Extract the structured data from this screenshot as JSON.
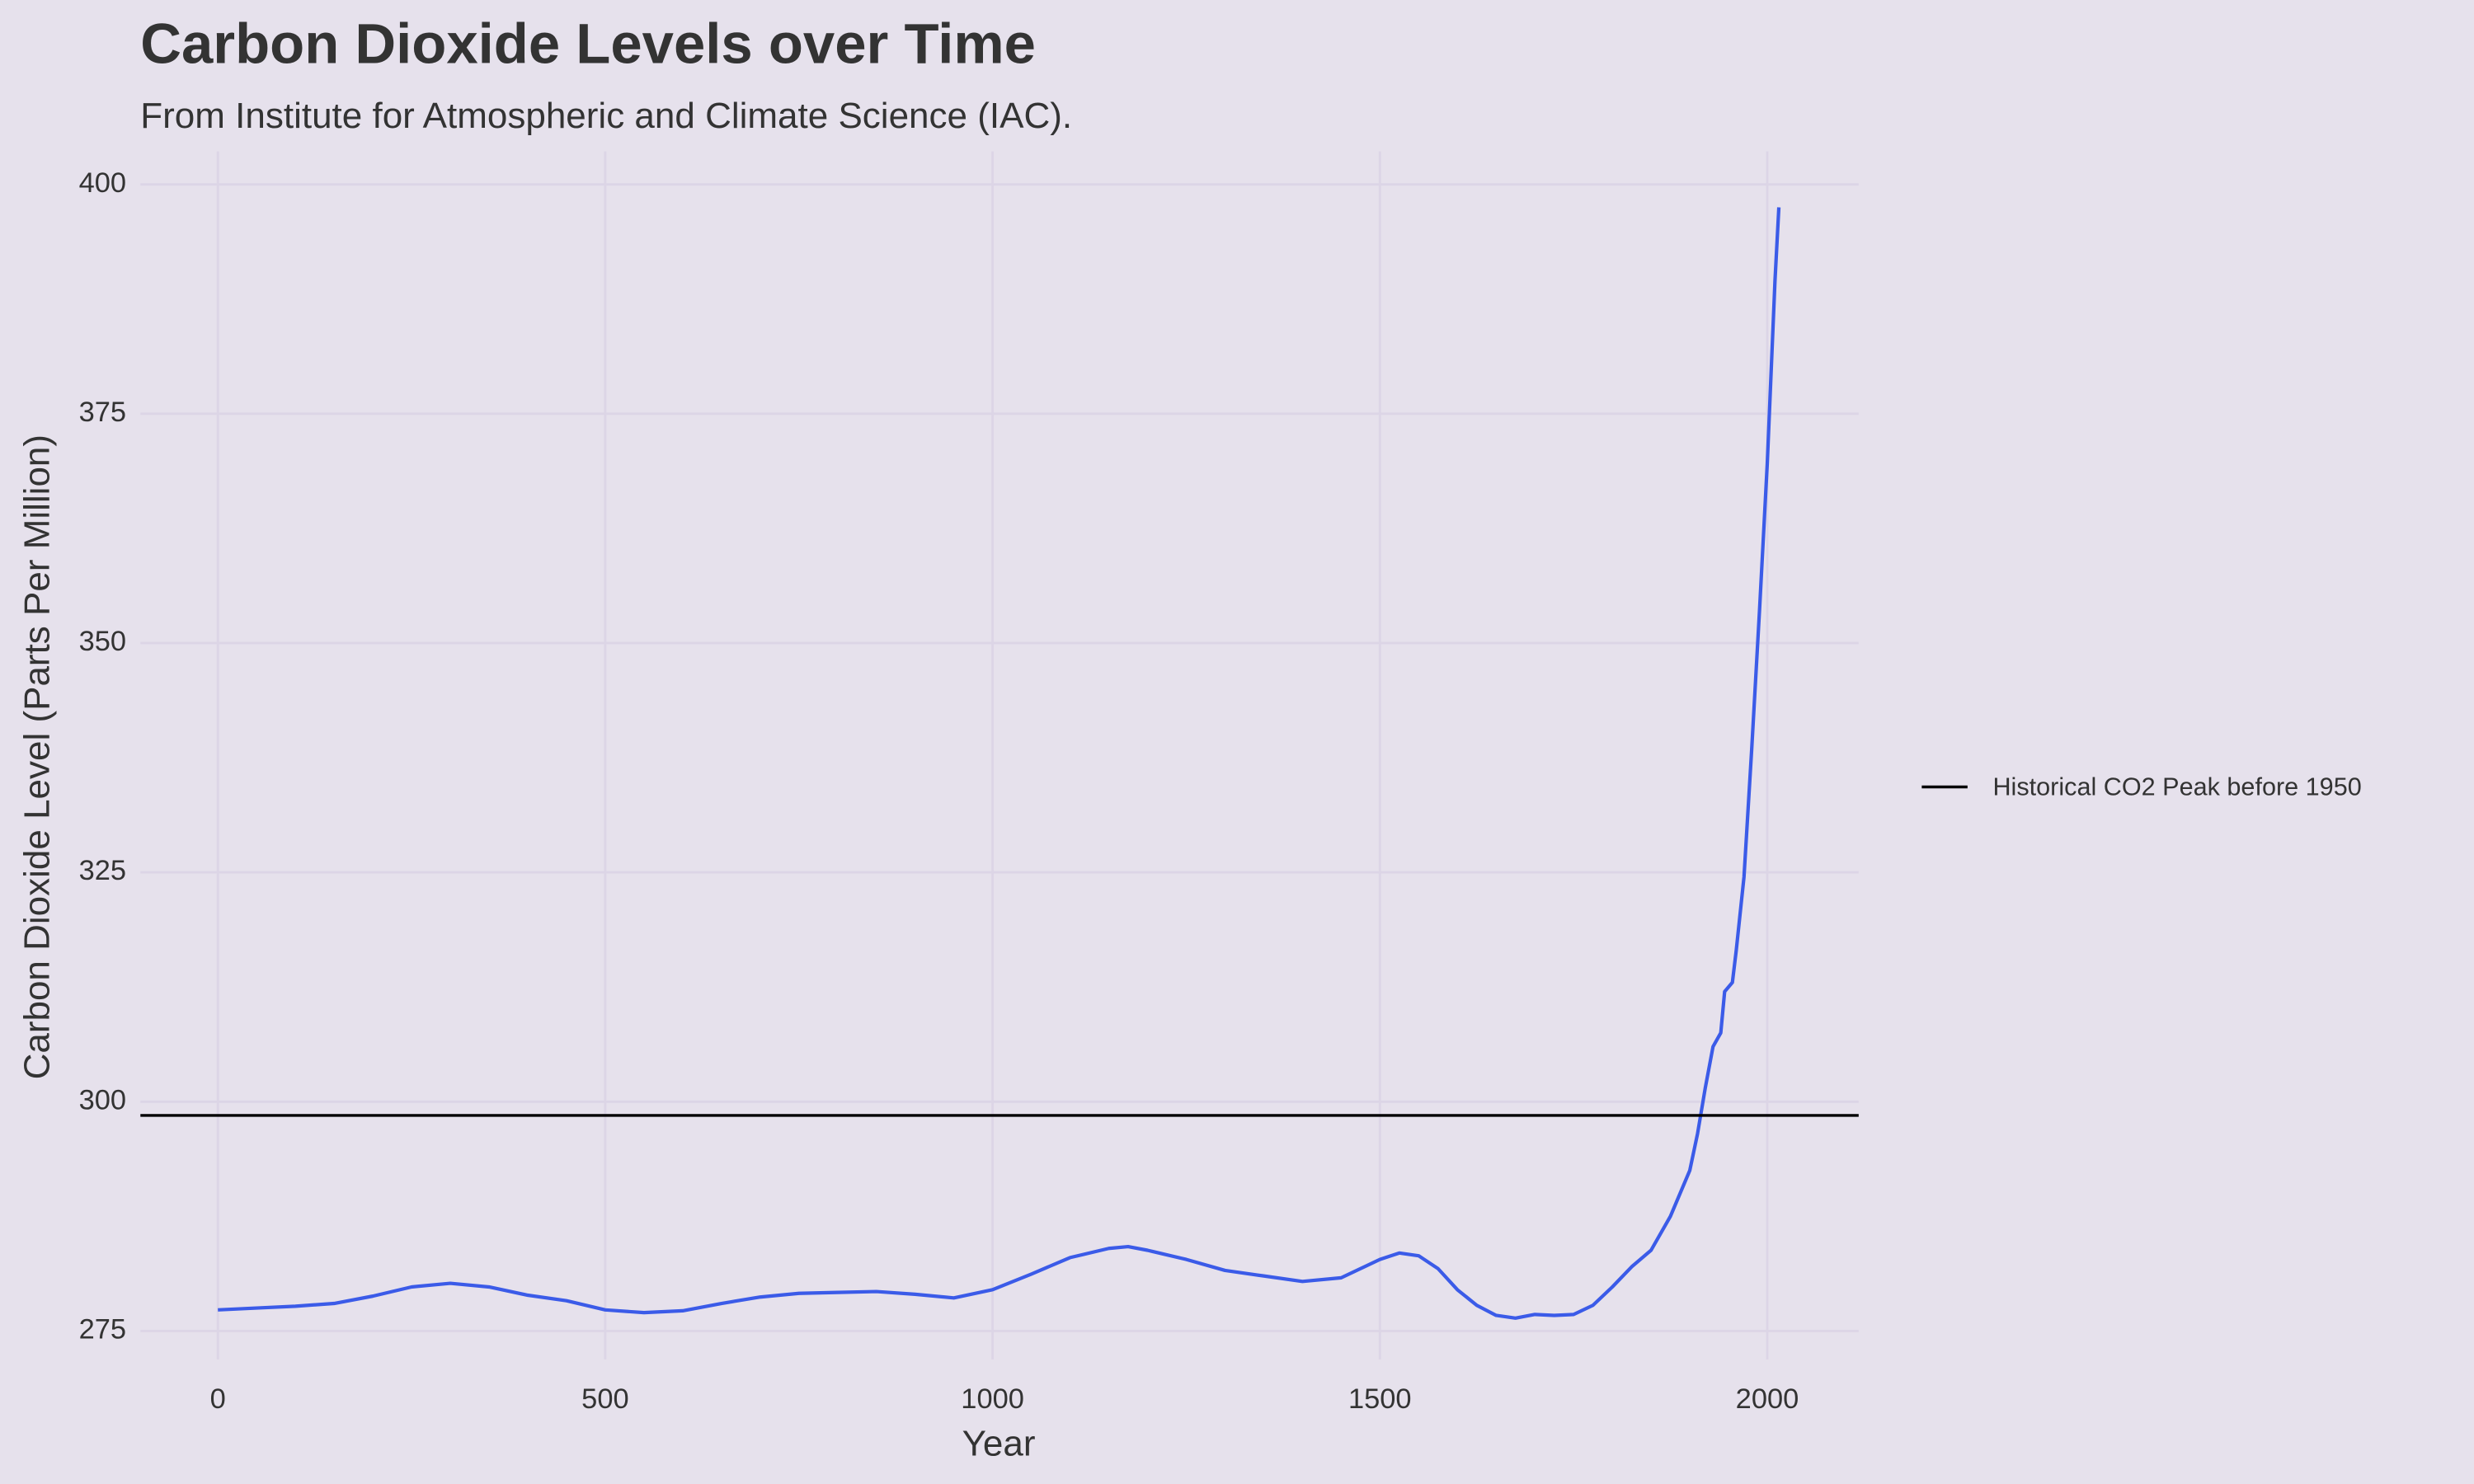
{
  "chart_data": {
    "type": "line",
    "title": "Carbon Dioxide Levels over Time",
    "subtitle": "From Institute for Atmospheric and Climate Science (IAC).",
    "x_label": "Year",
    "y_label": "Carbon Dioxide Level (Parts Per Million)",
    "x": [
      0,
      50,
      100,
      150,
      200,
      250,
      300,
      350,
      400,
      450,
      500,
      550,
      600,
      650,
      700,
      750,
      800,
      850,
      900,
      950,
      1000,
      1050,
      1100,
      1150,
      1175,
      1200,
      1250,
      1300,
      1350,
      1400,
      1450,
      1500,
      1525,
      1550,
      1575,
      1600,
      1625,
      1650,
      1675,
      1700,
      1725,
      1750,
      1775,
      1800,
      1825,
      1850,
      1875,
      1900,
      1910,
      1920,
      1930,
      1940,
      1945,
      1955,
      1960,
      1970,
      1980,
      1990,
      2000,
      2010,
      2015
    ],
    "series": [
      {
        "color": "#3b5be8",
        "values": [
          277.3,
          277.5,
          277.7,
          278.0,
          278.8,
          279.8,
          280.2,
          279.8,
          278.9,
          278.3,
          277.3,
          277.0,
          277.2,
          278.0,
          278.7,
          279.1,
          279.2,
          279.3,
          279.0,
          278.6,
          279.5,
          281.2,
          283.0,
          284.0,
          284.2,
          283.8,
          282.8,
          281.6,
          281.0,
          280.4,
          280.8,
          282.8,
          283.5,
          283.2,
          281.8,
          279.5,
          277.8,
          276.7,
          276.4,
          276.8,
          276.7,
          276.8,
          277.8,
          279.8,
          282.0,
          283.8,
          287.5,
          292.5,
          296.5,
          301.5,
          306.0,
          307.5,
          312.0,
          313.0,
          316.5,
          324.5,
          338.5,
          353.5,
          369.5,
          389.5,
          397.5
        ]
      }
    ],
    "hline": {
      "value": 298.5,
      "label": "Historical CO2 Peak before 1950",
      "color": "#000000"
    },
    "xlim": [
      -100,
      2118
    ],
    "ylim": [
      271.9,
      403.6
    ],
    "xticks": [
      0,
      500,
      1000,
      1500,
      2000
    ],
    "yticks": [
      275,
      300,
      325,
      350,
      375,
      400
    ],
    "grid": true,
    "legend_position": "right"
  }
}
